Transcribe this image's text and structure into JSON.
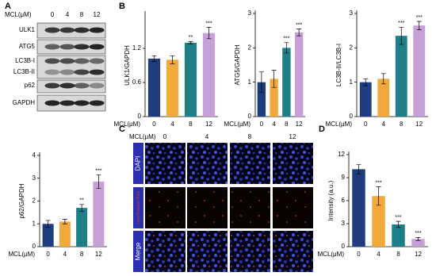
{
  "panel_labels": [
    "A",
    "B",
    "C",
    "D"
  ],
  "western_blot": {
    "x_label": "MCL(μM)",
    "lanes": [
      "0",
      "4",
      "8",
      "12"
    ],
    "proteins": [
      "ULK1",
      "ATG5",
      "LC3B-I",
      "LC3B-II",
      "p62",
      "GAPDH"
    ]
  },
  "imaging": {
    "x_label": "MCL(μM)",
    "columns": [
      "0",
      "4",
      "8",
      "12"
    ],
    "channels": [
      "DAPI",
      "LysoTracker Red",
      "Merge"
    ]
  },
  "chart_data": [
    {
      "type": "bar",
      "ylabel": "ULK1/GAPDH",
      "xlabel": "MCL(μM)",
      "categories": [
        "0",
        "4",
        "8",
        "12"
      ],
      "values": [
        1.02,
        1.0,
        1.3,
        1.47
      ],
      "errors": [
        0.05,
        0.07,
        0.02,
        0.1
      ],
      "significance": [
        null,
        null,
        "**",
        "***"
      ],
      "colors": [
        "#1f3c7c",
        "#f0a93a",
        "#1f7f88",
        "#c7a0d8"
      ],
      "ylim": [
        0,
        1.8
      ],
      "yticks": [
        0,
        0.6,
        1.2
      ]
    },
    {
      "type": "bar",
      "ylabel": "ATG5/GAPDH",
      "xlabel": "MCL(μM)",
      "categories": [
        "0",
        "4",
        "8",
        "12"
      ],
      "values": [
        1.0,
        1.1,
        2.0,
        2.45
      ],
      "errors": [
        0.3,
        0.25,
        0.15,
        0.1
      ],
      "significance": [
        null,
        null,
        "***",
        "***"
      ],
      "colors": [
        "#1f3c7c",
        "#f0a93a",
        "#1f7f88",
        "#c7a0d8"
      ],
      "ylim": [
        0,
        3
      ],
      "yticks": [
        0,
        1,
        2,
        3
      ]
    },
    {
      "type": "bar",
      "ylabel": "LC3B-II/LC3B-I",
      "xlabel": "MCL(μM)",
      "categories": [
        "0",
        "4",
        "8",
        "12"
      ],
      "values": [
        1.0,
        1.1,
        2.35,
        2.65
      ],
      "errors": [
        0.1,
        0.15,
        0.25,
        0.12
      ],
      "significance": [
        null,
        null,
        "***",
        "***"
      ],
      "colors": [
        "#1f3c7c",
        "#f0a93a",
        "#1f7f88",
        "#c7a0d8"
      ],
      "ylim": [
        0,
        3
      ],
      "yticks": [
        0,
        1,
        2,
        3
      ]
    },
    {
      "type": "bar",
      "ylabel": "p62/GAPDH",
      "xlabel": "MCL(μM)",
      "categories": [
        "0",
        "4",
        "8",
        "12"
      ],
      "values": [
        1.0,
        1.1,
        1.7,
        2.85
      ],
      "errors": [
        0.15,
        0.1,
        0.15,
        0.3
      ],
      "significance": [
        null,
        null,
        "**",
        "***"
      ],
      "colors": [
        "#1f3c7c",
        "#f0a93a",
        "#1f7f88",
        "#c7a0d8"
      ],
      "ylim": [
        0,
        4
      ],
      "yticks": [
        0,
        1,
        2,
        3,
        4
      ]
    },
    {
      "type": "bar",
      "ylabel": "Intensity (a.u.)",
      "xlabel": "MCL(μM)",
      "categories": [
        "0",
        "4",
        "8",
        "12"
      ],
      "values": [
        10.1,
        6.6,
        2.9,
        1.0
      ],
      "errors": [
        0.6,
        1.2,
        0.4,
        0.2
      ],
      "significance": [
        null,
        "***",
        "***",
        "***"
      ],
      "colors": [
        "#1f3c7c",
        "#f0a93a",
        "#1f7f88",
        "#c7a0d8"
      ],
      "ylim": [
        0,
        12
      ],
      "yticks": [
        0,
        3,
        6,
        9,
        12
      ]
    }
  ]
}
